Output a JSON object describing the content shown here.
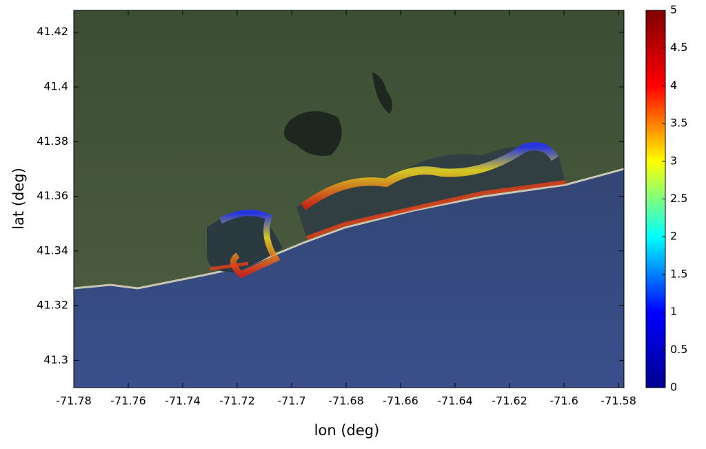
{
  "chart_data": {
    "type": "map",
    "xlabel": "lon (deg)",
    "ylabel": "lat (deg)",
    "xlim": [
      -71.78,
      -71.578
    ],
    "ylim": [
      41.29,
      41.428
    ],
    "xticks": [
      -71.78,
      -71.76,
      -71.74,
      -71.72,
      -71.7,
      -71.68,
      -71.66,
      -71.64,
      -71.62,
      -71.6,
      -71.58
    ],
    "yticks": [
      41.3,
      41.32,
      41.34,
      41.36,
      41.38,
      41.4,
      41.42
    ],
    "colorbar": {
      "lim": [
        0,
        5
      ],
      "ticks": [
        0,
        0.5,
        1,
        1.5,
        2,
        2.5,
        3,
        3.5,
        4,
        4.5,
        5
      ],
      "colors": [
        "#00008f",
        "#0000ff",
        "#00ffff",
        "#ffff00",
        "#ff0000",
        "#800000"
      ]
    }
  }
}
